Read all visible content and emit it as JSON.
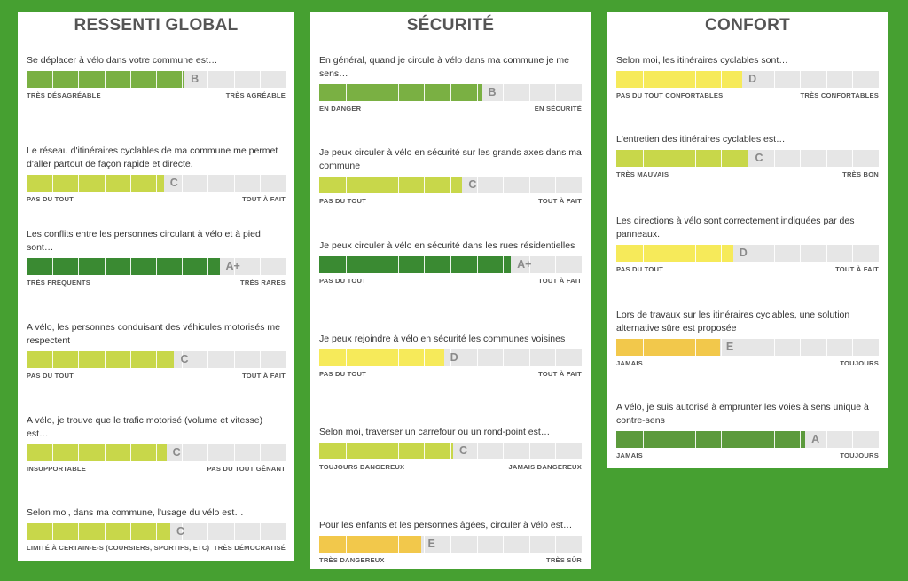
{
  "colors": {
    "background": "#46a031",
    "panel": "#ffffff",
    "track": "#e6e6e6",
    "grade_colors": {
      "A+": "#3a8a32",
      "A": "#5c9a3c",
      "B": "#7ab043",
      "C": "#c8d74a",
      "D": "#f6ea5a",
      "E": "#f2c84b"
    }
  },
  "panels": [
    {
      "title": "RESSENTI GLOBAL",
      "questions": [
        {
          "text": "Se déplacer à vélo dans votre commune est…",
          "value": 0.61,
          "grade": "B",
          "min_label": "TRÈS DÉSAGRÉABLE",
          "max_label": "TRÈS AGRÉABLE"
        },
        {
          "text": "Le réseau d'itinéraires cyclables de ma commune me permet d'aller partout de façon rapide et directe.",
          "value": 0.53,
          "grade": "C",
          "min_label": "PAS DU TOUT",
          "max_label": "TOUT À FAIT"
        },
        {
          "text": "Les conflits entre les personnes circulant à vélo et à pied sont…",
          "value": 0.745,
          "grade": "A+",
          "min_label": "TRÈS FRÉQUENTS",
          "max_label": "TRÈS RARES"
        },
        {
          "text": "A vélo, les personnes conduisant des véhicules motorisés me respectent",
          "value": 0.57,
          "grade": "C",
          "min_label": "PAS DU TOUT",
          "max_label": "TOUT À FAIT"
        },
        {
          "text": "A vélo, je trouve que le trafic motorisé (volume et vitesse) est…",
          "value": 0.54,
          "grade": "C",
          "min_label": "INSUPPORTABLE",
          "max_label": "PAS DU TOUT GÊNANT"
        },
        {
          "text": "Selon moi, dans ma commune, l'usage du vélo est…",
          "value": 0.555,
          "grade": "C",
          "min_label": "LIMITÉ À CERTAIN-E-S (COURSIERS, SPORTIFS, ETC)",
          "max_label": "TRÈS DÉMOCRATISÉ"
        }
      ]
    },
    {
      "title": "SÉCURITÉ",
      "questions": [
        {
          "text": "En général, quand je circule à vélo dans ma commune je me sens…",
          "value": 0.62,
          "grade": "B",
          "min_label": "EN DANGER",
          "max_label": "EN SÉCURITÉ"
        },
        {
          "text": "Je peux circuler à vélo en sécurité sur les grands axes dans ma commune",
          "value": 0.545,
          "grade": "C",
          "min_label": "PAS DU TOUT",
          "max_label": "TOUT À FAIT"
        },
        {
          "text": "Je peux circuler à vélo en sécurité dans les rues résidentielles",
          "value": 0.73,
          "grade": "A+",
          "min_label": "PAS DU TOUT",
          "max_label": "TOUT À FAIT"
        },
        {
          "text": "Je peux rejoindre à vélo en sécurité les communes voisines",
          "value": 0.475,
          "grade": "D",
          "min_label": "PAS DU TOUT",
          "max_label": "TOUT À FAIT"
        },
        {
          "text": "Selon moi, traverser un carrefour ou un rond-point est…",
          "value": 0.51,
          "grade": "C",
          "min_label": "TOUJOURS DANGEREUX",
          "max_label": "JAMAIS DANGEREUX"
        },
        {
          "text": "Pour les enfants et les personnes âgées, circuler à vélo est…",
          "value": 0.39,
          "grade": "E",
          "min_label": "TRÈS DANGEREUX",
          "max_label": "TRÈS SÛR"
        }
      ]
    },
    {
      "title": "CONFORT",
      "questions": [
        {
          "text": "Selon moi, les itinéraires cyclables sont…",
          "value": 0.48,
          "grade": "D",
          "min_label": "PAS DU TOUT CONFORTABLES",
          "max_label": "TRÈS CONFORTABLES"
        },
        {
          "text": "L'entretien des itinéraires cyclables est…",
          "value": 0.505,
          "grade": "C",
          "min_label": "TRÈS MAUVAIS",
          "max_label": "TRÈS BON"
        },
        {
          "text": "Les directions à vélo sont correctement indiquées par des panneaux.",
          "value": 0.445,
          "grade": "D",
          "min_label": "PAS DU TOUT",
          "max_label": "TOUT À FAIT"
        },
        {
          "text": "Lors de travaux sur les itinéraires cyclables, une solution alternative sûre est proposée",
          "value": 0.395,
          "grade": "E",
          "min_label": "JAMAIS",
          "max_label": "TOUJOURS"
        },
        {
          "text": "A vélo, je suis autorisé à emprunter les voies à sens unique à contre-sens",
          "value": 0.72,
          "grade": "A",
          "min_label": "JAMAIS",
          "max_label": "TOUJOURS"
        }
      ]
    }
  ]
}
